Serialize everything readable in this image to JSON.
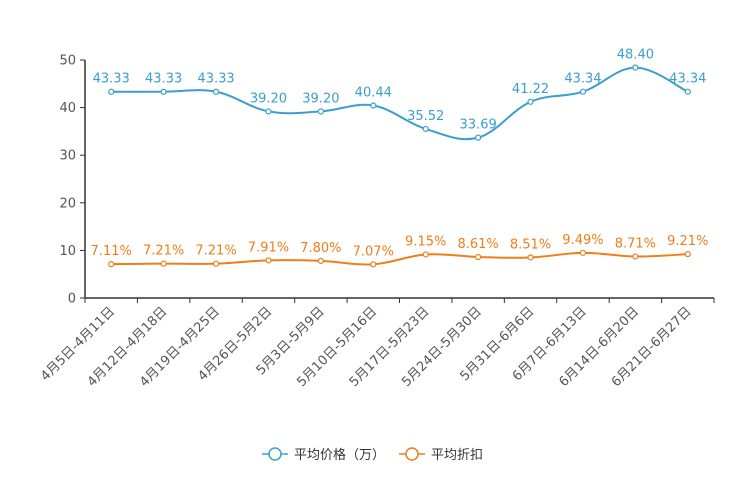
{
  "chart_data": {
    "type": "line",
    "title": "",
    "xlabel": "",
    "ylabel": "",
    "ylim": [
      0,
      50
    ],
    "yticks": [
      0,
      10,
      20,
      30,
      40,
      50
    ],
    "grid": false,
    "legend_position": "bottom-center",
    "categories": [
      "4月5日-4月11日",
      "4月12日-4月18日",
      "4月19日-4月25日",
      "4月26日-5月2日",
      "5月3日-5月9日",
      "5月10日-5月16日",
      "5月17日-5月23日",
      "5月24日-5月30日",
      "5月31日-6月6日",
      "6月7日-6月13日",
      "6月14日-6月20日",
      "6月21日-6月27日"
    ],
    "series": [
      {
        "name": "平均价格（万）",
        "color": "#3a9fce",
        "values": [
          43.33,
          43.33,
          43.33,
          39.2,
          39.2,
          40.44,
          35.52,
          33.69,
          41.22,
          43.34,
          48.4,
          43.34
        ],
        "labels": [
          "43.33",
          "43.33",
          "43.33",
          "39.20",
          "39.20",
          "40.44",
          "35.52",
          "33.69",
          "41.22",
          "43.34",
          "48.40",
          "43.34"
        ]
      },
      {
        "name": "平均折扣",
        "color": "#f07d18",
        "values": [
          7.11,
          7.21,
          7.21,
          7.91,
          7.8,
          7.07,
          9.15,
          8.61,
          8.51,
          9.49,
          8.71,
          9.21
        ],
        "labels": [
          "7.11%",
          "7.21%",
          "7.21%",
          "7.91%",
          "7.80%",
          "7.07%",
          "9.15%",
          "8.61%",
          "8.51%",
          "9.49%",
          "8.71%",
          "9.21%"
        ]
      }
    ]
  }
}
